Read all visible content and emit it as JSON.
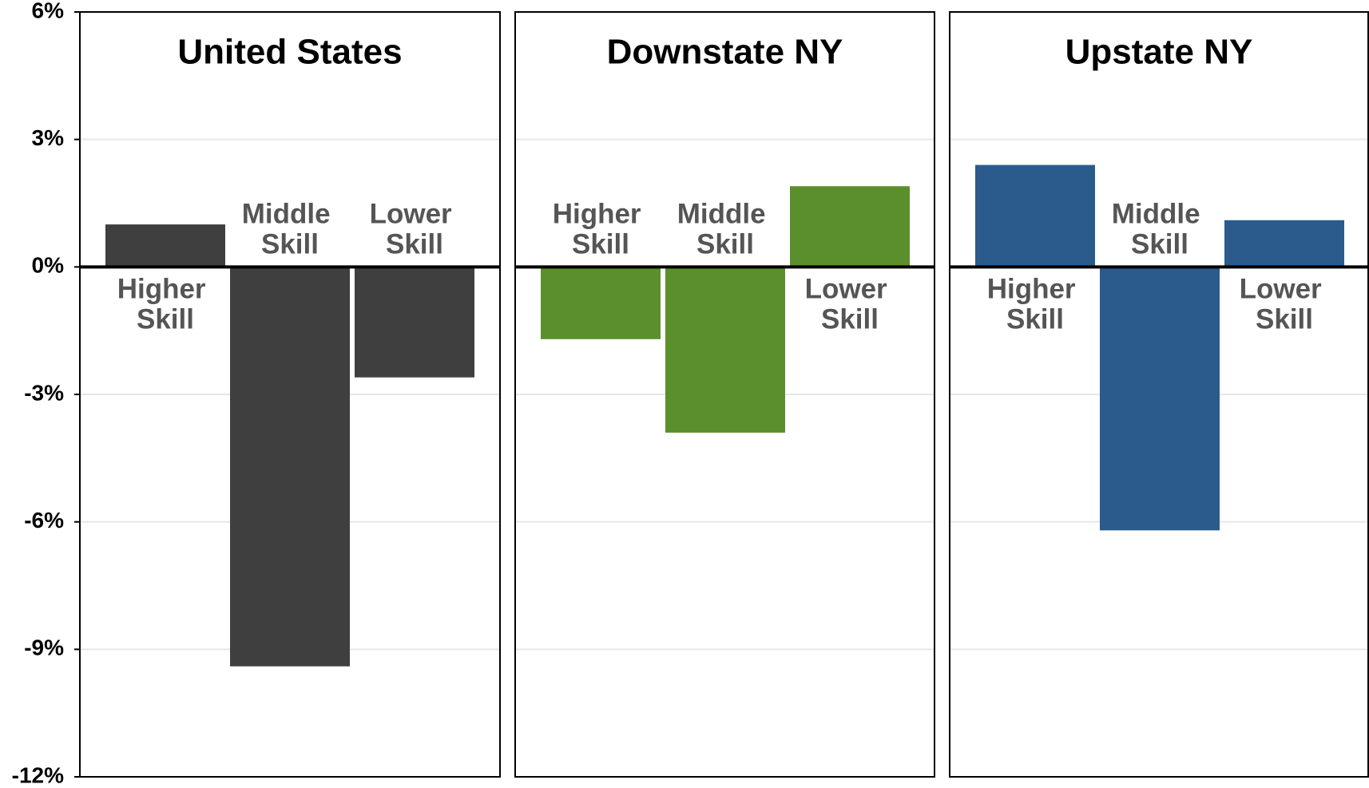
{
  "chart_data": [
    {
      "type": "bar",
      "title": "United States",
      "categories": [
        "Higher Skill",
        "Middle Skill",
        "Lower Skill"
      ],
      "values": [
        1.0,
        -9.4,
        -2.6
      ],
      "color": "#3f3f3f",
      "ylim": [
        -12,
        6
      ],
      "yticks": [
        {
          "value": -12,
          "label": "-12%"
        },
        {
          "value": -9,
          "label": "-9%"
        },
        {
          "value": -6,
          "label": "-6%"
        },
        {
          "value": -3,
          "label": "-3%"
        },
        {
          "value": 0,
          "label": "0%"
        },
        {
          "value": 3,
          "label": "3%"
        },
        {
          "value": 6,
          "label": "6%"
        }
      ],
      "grid": true
    },
    {
      "type": "bar",
      "title": "Downstate NY",
      "categories": [
        "Higher Skill",
        "Middle Skill",
        "Lower Skill"
      ],
      "values": [
        -1.7,
        -3.9,
        1.9
      ],
      "color": "#5b8f2b"
    },
    {
      "type": "bar",
      "title": "Upstate NY",
      "categories": [
        "Higher Skill",
        "Middle Skill",
        "Lower Skill"
      ],
      "values": [
        2.4,
        -6.2,
        1.1
      ],
      "color": "#2a5b8c"
    }
  ]
}
